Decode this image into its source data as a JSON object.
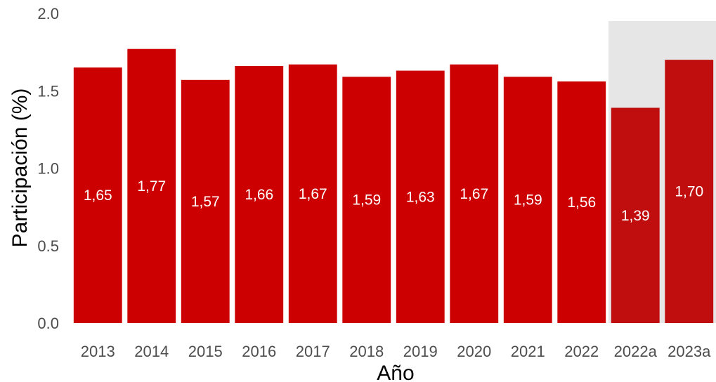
{
  "chart_data": {
    "type": "bar",
    "categories": [
      "2013",
      "2014",
      "2015",
      "2016",
      "2017",
      "2018",
      "2019",
      "2020",
      "2021",
      "2022",
      "2022a",
      "2023a"
    ],
    "values": [
      1.65,
      1.77,
      1.57,
      1.66,
      1.67,
      1.59,
      1.63,
      1.67,
      1.59,
      1.56,
      1.39,
      1.7
    ],
    "data_labels": [
      "1,65",
      "1,77",
      "1,57",
      "1,66",
      "1,67",
      "1,59",
      "1,63",
      "1,67",
      "1,59",
      "1,56",
      "1,39",
      "1,70"
    ],
    "title": "",
    "xlabel": "Año",
    "ylabel": "Participación (%)",
    "ylim": [
      0,
      2.0
    ],
    "yticks": [
      0.0,
      0.5,
      1.0,
      1.5,
      2.0
    ],
    "ytick_labels": [
      "0.0",
      "0.5",
      "1.0",
      "1.5",
      "2.0"
    ],
    "grid": false,
    "highlighted_categories": [
      "2022a",
      "2023a"
    ],
    "colors": {
      "bar": "#cc0000",
      "bar_highlight": "#c00d0d",
      "highlight_background": "#e6e6e6"
    }
  }
}
